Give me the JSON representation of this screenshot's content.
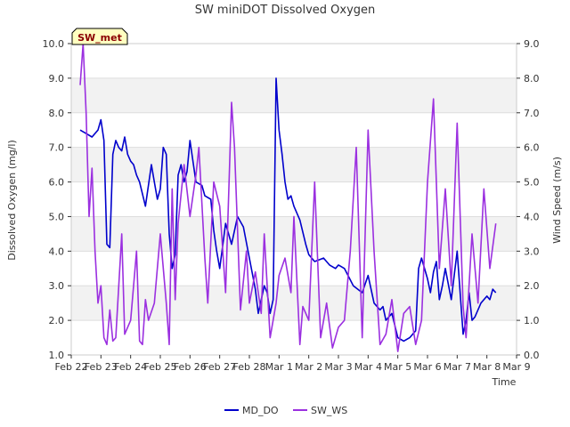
{
  "chart_data": {
    "type": "line",
    "title": "SW miniDOT Dissolved Oxygen",
    "xlabel": "Time",
    "ylabel_left": "Dissolved Oxygen (mg/l)",
    "ylabel_right": "Wind Speed (m/s)",
    "badge": "SW_met",
    "x_ticks": [
      "Feb 22",
      "Feb 23",
      "Feb 24",
      "Feb 25",
      "Feb 26",
      "Feb 27",
      "Feb 28",
      "Mar 1",
      "Mar 2",
      "Mar 3",
      "Mar 4",
      "Mar 5",
      "Mar 6",
      "Mar 7",
      "Mar 8",
      "Mar 9"
    ],
    "xlim_days": [
      0,
      15
    ],
    "ylim_left": [
      1.0,
      10.0
    ],
    "ylim_right": [
      0.0,
      9.0
    ],
    "y_ticks_left": [
      "1.0",
      "2.0",
      "3.0",
      "4.0",
      "5.0",
      "6.0",
      "7.0",
      "8.0",
      "9.0",
      "10.0"
    ],
    "y_ticks_right": [
      "0.0",
      "1.0",
      "2.0",
      "3.0",
      "4.0",
      "5.0",
      "6.0",
      "7.0",
      "8.0",
      "9.0"
    ],
    "grid": "horizontal bands",
    "legend_position": "bottom-center",
    "series": [
      {
        "name": "MD_DO",
        "color": "#0000cc",
        "axis": "left",
        "x": [
          0.3,
          0.5,
          0.7,
          0.9,
          1.0,
          1.1,
          1.2,
          1.3,
          1.4,
          1.5,
          1.6,
          1.7,
          1.8,
          1.9,
          2.0,
          2.1,
          2.2,
          2.3,
          2.5,
          2.7,
          2.8,
          2.9,
          3.0,
          3.1,
          3.2,
          3.3,
          3.4,
          3.5,
          3.6,
          3.7,
          3.8,
          3.9,
          4.0,
          4.2,
          4.4,
          4.5,
          4.7,
          4.8,
          4.9,
          5.0,
          5.2,
          5.4,
          5.6,
          5.8,
          6.0,
          6.2,
          6.3,
          6.5,
          6.6,
          6.7,
          6.8,
          6.9,
          7.0,
          7.1,
          7.2,
          7.3,
          7.4,
          7.5,
          7.7,
          7.9,
          8.0,
          8.2,
          8.5,
          8.7,
          8.9,
          9.0,
          9.2,
          9.5,
          9.8,
          10.0,
          10.2,
          10.4,
          10.5,
          10.6,
          10.8,
          11.0,
          11.2,
          11.4,
          11.6,
          11.7,
          11.8,
          12.0,
          12.1,
          12.2,
          12.3,
          12.4,
          12.5,
          12.6,
          12.8,
          13.0,
          13.2,
          13.3,
          13.4,
          13.5,
          13.6,
          13.8,
          14.0,
          14.1,
          14.2,
          14.3
        ],
        "y": [
          7.5,
          7.4,
          7.3,
          7.5,
          7.8,
          7.2,
          4.2,
          4.1,
          6.8,
          7.2,
          7.0,
          6.9,
          7.3,
          6.8,
          6.6,
          6.5,
          6.2,
          6.0,
          5.3,
          6.5,
          6.0,
          5.5,
          5.8,
          7.0,
          6.8,
          4.5,
          3.5,
          3.9,
          6.2,
          6.5,
          6.0,
          6.3,
          7.2,
          6.0,
          5.9,
          5.6,
          5.5,
          4.6,
          4.0,
          3.5,
          4.8,
          4.2,
          5.0,
          4.7,
          3.8,
          2.9,
          2.2,
          3.0,
          2.8,
          2.2,
          2.6,
          9.0,
          7.5,
          6.8,
          6.0,
          5.5,
          5.6,
          5.3,
          4.9,
          4.2,
          3.9,
          3.7,
          3.8,
          3.6,
          3.5,
          3.6,
          3.5,
          3.0,
          2.8,
          3.3,
          2.5,
          2.3,
          2.4,
          2.0,
          2.2,
          1.5,
          1.4,
          1.5,
          1.7,
          3.5,
          3.8,
          3.2,
          2.8,
          3.4,
          3.7,
          2.6,
          3.0,
          3.5,
          2.6,
          4.0,
          1.6,
          2.0,
          2.8,
          2.0,
          2.1,
          2.5,
          2.7,
          2.6,
          2.9,
          2.8
        ]
      },
      {
        "name": "SW_WS",
        "color": "#9b30e0",
        "axis": "right",
        "x": [
          0.3,
          0.4,
          0.5,
          0.6,
          0.7,
          0.8,
          0.9,
          1.0,
          1.1,
          1.2,
          1.3,
          1.4,
          1.5,
          1.7,
          1.8,
          2.0,
          2.2,
          2.3,
          2.4,
          2.5,
          2.6,
          2.8,
          3.0,
          3.2,
          3.3,
          3.4,
          3.5,
          3.6,
          3.8,
          4.0,
          4.2,
          4.3,
          4.5,
          4.6,
          4.8,
          5.0,
          5.2,
          5.4,
          5.5,
          5.7,
          5.9,
          6.0,
          6.2,
          6.4,
          6.5,
          6.7,
          6.9,
          7.0,
          7.2,
          7.4,
          7.5,
          7.7,
          7.8,
          8.0,
          8.2,
          8.4,
          8.6,
          8.8,
          9.0,
          9.2,
          9.4,
          9.6,
          9.8,
          10.0,
          10.2,
          10.4,
          10.6,
          10.8,
          11.0,
          11.2,
          11.4,
          11.6,
          11.8,
          12.0,
          12.2,
          12.4,
          12.6,
          12.8,
          13.0,
          13.2,
          13.3,
          13.5,
          13.7,
          13.9,
          14.1,
          14.3
        ],
        "y": [
          7.8,
          9.0,
          7.0,
          4.0,
          5.4,
          3.0,
          1.5,
          2.0,
          0.5,
          0.3,
          1.3,
          0.4,
          0.5,
          3.5,
          0.6,
          1.0,
          3.0,
          0.4,
          0.3,
          1.6,
          1.0,
          1.5,
          3.5,
          1.5,
          0.3,
          4.8,
          1.6,
          3.8,
          5.5,
          4.0,
          5.2,
          6.0,
          2.8,
          1.5,
          5.0,
          4.3,
          1.8,
          7.3,
          6.0,
          1.3,
          3.0,
          1.5,
          2.4,
          1.2,
          3.5,
          0.5,
          1.5,
          2.3,
          2.8,
          1.8,
          4.0,
          0.3,
          1.4,
          1.0,
          5.0,
          0.5,
          1.5,
          0.2,
          0.8,
          1.0,
          3.0,
          6.0,
          0.5,
          6.5,
          3.0,
          0.3,
          0.6,
          1.6,
          0.1,
          1.2,
          1.4,
          0.3,
          1.0,
          5.0,
          7.4,
          2.5,
          4.8,
          2.0,
          6.7,
          1.4,
          0.5,
          3.5,
          1.5,
          4.8,
          2.5,
          3.8
        ]
      }
    ]
  }
}
